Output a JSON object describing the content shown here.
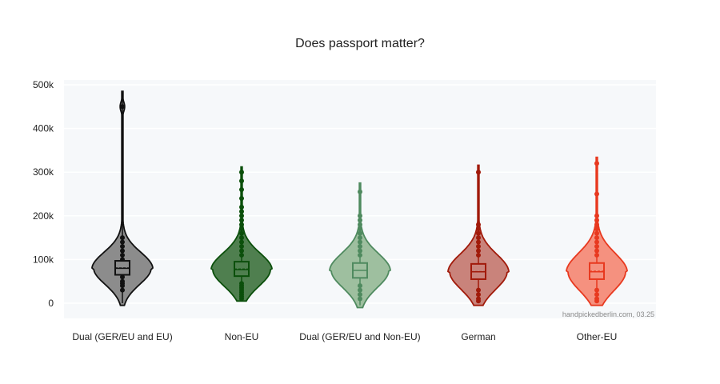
{
  "chart_data": {
    "type": "violin",
    "title": "Does passport matter?",
    "xlabel": "",
    "ylabel": "",
    "ylim": [
      -35000,
      520000
    ],
    "yticks": [
      0,
      100000,
      200000,
      300000,
      400000,
      500000
    ],
    "ytick_labels": [
      "0",
      "100k",
      "200k",
      "300k",
      "400k",
      "500k"
    ],
    "grid": true,
    "legend": "none",
    "watermark": "handpickedberlin.com, 03.25",
    "categories": [
      "Dual (GER/EU and EU)",
      "Non-EU",
      "Dual (GER/EU and Non-EU)",
      "German",
      "Other-EU"
    ],
    "series": [
      {
        "category": "Dual (GER/EU and EU)",
        "color": "#111111",
        "fill": "#8c8c8c",
        "min": -5000,
        "max": 485000,
        "q1": 65000,
        "median": 80000,
        "q3": 97000,
        "outliers": [
          30000,
          40000,
          45000,
          50000,
          60000,
          70000,
          85000,
          90000,
          100000,
          110000,
          120000,
          130000,
          140000,
          150000,
          450000
        ]
      },
      {
        "category": "Non-EU",
        "color": "#0b4f0b",
        "fill": "#4f7f4f",
        "min": 5000,
        "max": 312000,
        "q1": 62000,
        "median": 77000,
        "q3": 95000,
        "outliers": [
          10000,
          15000,
          20000,
          25000,
          30000,
          35000,
          40000,
          45000,
          110000,
          120000,
          130000,
          140000,
          150000,
          160000,
          170000,
          180000,
          190000,
          200000,
          210000,
          220000,
          240000,
          260000,
          280000,
          300000
        ]
      },
      {
        "category": "Dual (GER/EU and Non-EU)",
        "color": "#4f8a5f",
        "fill": "#9ebf9f",
        "min": -10000,
        "max": 275000,
        "q1": 58000,
        "median": 75000,
        "q3": 92000,
        "outliers": [
          10000,
          20000,
          30000,
          40000,
          110000,
          120000,
          130000,
          140000,
          150000,
          160000,
          170000,
          180000,
          190000,
          200000,
          255000
        ]
      },
      {
        "category": "German",
        "color": "#a11a0a",
        "fill": "#c9837b",
        "min": -5000,
        "max": 316000,
        "q1": 55000,
        "median": 72000,
        "q3": 90000,
        "outliers": [
          5000,
          10000,
          20000,
          30000,
          110000,
          120000,
          130000,
          140000,
          150000,
          160000,
          170000,
          180000,
          300000
        ]
      },
      {
        "category": "Other-EU",
        "color": "#e8391f",
        "fill": "#f5917f",
        "min": -5000,
        "max": 334000,
        "q1": 55000,
        "median": 72000,
        "q3": 92000,
        "outliers": [
          5000,
          10000,
          20000,
          30000,
          110000,
          120000,
          130000,
          140000,
          150000,
          160000,
          170000,
          180000,
          190000,
          200000,
          250000,
          320000
        ]
      }
    ]
  }
}
